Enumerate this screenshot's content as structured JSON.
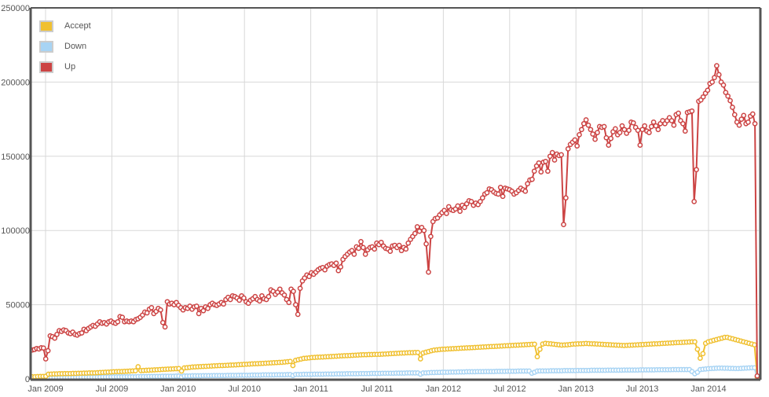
{
  "chart_data": {
    "type": "line",
    "title": "",
    "xlabel": "",
    "ylabel": "",
    "ylim": [
      0,
      250000
    ],
    "y_ticks": [
      "0",
      "50000",
      "100000",
      "150000",
      "200000",
      "250000"
    ],
    "x_ticks": [
      "Jan 2009",
      "Jul 2009",
      "Jan 2010",
      "Jul 2010",
      "Jan 2011",
      "Jul 2011",
      "Jan 2012",
      "Jul 2012",
      "Jan 2013",
      "Jul 2013",
      "Jan 2014"
    ],
    "grid": true,
    "legend_position": "top-left",
    "x_granularity": "weekly",
    "x_start": "Nov 2008",
    "x_end": "Jun 2014",
    "series": [
      {
        "name": "Accept",
        "color": "#f0c030",
        "values": [
          1500,
          1500,
          1600,
          1700,
          1700,
          1800,
          3200,
          3300,
          3400,
          3400,
          3500,
          3500,
          3600,
          3600,
          3600,
          3700,
          3700,
          3800,
          3800,
          3900,
          3900,
          4000,
          4000,
          4100,
          4200,
          4300,
          4400,
          4500,
          4600,
          4700,
          4800,
          4900,
          5000,
          5000,
          5100,
          5200,
          5300,
          5400,
          5500,
          8200,
          5600,
          5700,
          5800,
          5900,
          6000,
          6100,
          6200,
          6300,
          6400,
          6500,
          6600,
          6700,
          6800,
          6900,
          7000,
          5300,
          7400,
          7600,
          7800,
          8000,
          8100,
          8200,
          8300,
          8400,
          8500,
          8600,
          8700,
          8800,
          8900,
          9000,
          9000,
          9100,
          9200,
          9300,
          9400,
          9500,
          9600,
          9700,
          9800,
          9900,
          10000,
          10100,
          10200,
          10300,
          10400,
          10500,
          10600,
          10700,
          10800,
          10900,
          11000,
          11100,
          11200,
          11400,
          11600,
          11800,
          9000,
          12500,
          13000,
          13400,
          13800,
          14000,
          14200,
          14400,
          14500,
          14600,
          14700,
          14800,
          14900,
          15000,
          15100,
          15200,
          15300,
          15400,
          15500,
          15600,
          15700,
          15800,
          15900,
          16000,
          16100,
          16200,
          16300,
          16300,
          16400,
          16400,
          16500,
          16500,
          16600,
          16700,
          16800,
          16900,
          17000,
          17100,
          17200,
          17300,
          17400,
          17500,
          17600,
          17700,
          17700,
          17800,
          17800,
          13500,
          17500,
          18000,
          18500,
          19000,
          19400,
          19600,
          19800,
          20000,
          20100,
          20200,
          20300,
          20400,
          20500,
          20600,
          20700,
          20800,
          20900,
          21000,
          21100,
          21200,
          21300,
          21400,
          21500,
          21600,
          21700,
          21800,
          21900,
          22000,
          22100,
          22200,
          22300,
          22400,
          22500,
          22600,
          22700,
          22800,
          22900,
          23000,
          23100,
          23200,
          23300,
          23400,
          15000,
          20000,
          23500,
          24000,
          23800,
          23600,
          23400,
          23200,
          23000,
          22800,
          22900,
          23000,
          23200,
          23400,
          23500,
          23600,
          23700,
          23800,
          23900,
          23800,
          23700,
          23600,
          23500,
          23400,
          23300,
          23200,
          23100,
          23000,
          22900,
          22800,
          22700,
          22600,
          22500,
          22600,
          22700,
          22800,
          22900,
          23000,
          23100,
          23200,
          23300,
          23400,
          23500,
          23600,
          23700,
          23800,
          23900,
          24000,
          24100,
          24200,
          24300,
          24400,
          24500,
          24600,
          24700,
          24800,
          24900,
          25000,
          25000,
          20000,
          14000,
          17000,
          24000,
          25000,
          25500,
          26000,
          26500,
          27000,
          27500,
          28000,
          28000,
          27500,
          27000,
          26500,
          26000,
          25500,
          25000,
          24500,
          24000,
          23500,
          23000,
          1500
        ],
        "description": "Grows from ~1.5k (Nov 2008) to ~27k (Apr 2014), dips near each New Year, drops to ~0 at end"
      },
      {
        "name": "Down",
        "color": "#a8d4f4",
        "values": [
          500,
          500,
          500,
          500,
          500,
          500,
          700,
          800,
          800,
          800,
          900,
          900,
          900,
          900,
          1000,
          1000,
          1000,
          1000,
          1100,
          1100,
          1100,
          1100,
          1200,
          1200,
          1200,
          1200,
          1300,
          1300,
          1300,
          1300,
          1400,
          1400,
          1400,
          1400,
          1500,
          1500,
          1500,
          1500,
          1500,
          1600,
          1600,
          1600,
          1600,
          1700,
          1700,
          1700,
          1700,
          1700,
          1800,
          1800,
          1800,
          1800,
          1800,
          1900,
          1900,
          1400,
          2000,
          2000,
          2000,
          2100,
          2100,
          2100,
          2100,
          2200,
          2200,
          2200,
          2200,
          2300,
          2300,
          2300,
          2300,
          2300,
          2400,
          2400,
          2400,
          2400,
          2500,
          2500,
          2500,
          2500,
          2500,
          2600,
          2600,
          2600,
          2600,
          2700,
          2700,
          2700,
          2700,
          2700,
          2800,
          2800,
          2800,
          2800,
          2900,
          2900,
          2300,
          3000,
          3000,
          3000,
          3100,
          3100,
          3100,
          3100,
          3200,
          3200,
          3200,
          3200,
          3300,
          3300,
          3300,
          3300,
          3400,
          3400,
          3400,
          3400,
          3500,
          3500,
          3500,
          3500,
          3500,
          3600,
          3600,
          3600,
          3600,
          3700,
          3700,
          3700,
          3700,
          3800,
          3800,
          3800,
          3800,
          3800,
          3900,
          3900,
          3900,
          3900,
          4000,
          4000,
          4000,
          4000,
          4000,
          3200,
          4000,
          4100,
          4200,
          4300,
          4300,
          4400,
          4400,
          4500,
          4500,
          4500,
          4600,
          4600,
          4600,
          4700,
          4700,
          4700,
          4800,
          4800,
          4800,
          4800,
          4900,
          4900,
          4900,
          5000,
          5000,
          5000,
          5000,
          5100,
          5100,
          5100,
          5100,
          5200,
          5200,
          5200,
          5200,
          5300,
          5300,
          5300,
          5300,
          5300,
          3800,
          4500,
          5300,
          5400,
          5400,
          5400,
          5400,
          5500,
          5500,
          5500,
          5500,
          5500,
          5600,
          5600,
          5600,
          5600,
          5600,
          5700,
          5700,
          5700,
          5700,
          5700,
          5800,
          5800,
          5800,
          5800,
          5800,
          5800,
          5900,
          5900,
          5900,
          5900,
          5900,
          5900,
          6000,
          6000,
          6000,
          6000,
          6000,
          6000,
          6100,
          6100,
          6100,
          6100,
          6100,
          6100,
          6200,
          6200,
          6200,
          6200,
          6200,
          6200,
          6300,
          6300,
          6300,
          6300,
          6300,
          6300,
          6300,
          5000,
          3500,
          4500,
          6300,
          6500,
          6700,
          6900,
          7000,
          7100,
          7200,
          7300,
          7300,
          7200,
          7200,
          7100,
          7100,
          7000,
          7000,
          7100,
          7200,
          7300,
          7400,
          7500,
          7500,
          500
        ],
        "description": "Grows slowly from ~0.5k to ~7.5k, follows Accept's seasonal dips, drops to ~0 at end"
      },
      {
        "name": "Up",
        "color": "#cc4444",
        "values": [
          19500,
          19800,
          20500,
          20200,
          21000,
          20800,
          13500,
          19000,
          29000,
          28500,
          27500,
          30000,
          32500,
          32000,
          33000,
          32500,
          31000,
          30500,
          31500,
          30000,
          29500,
          30500,
          31000,
          33500,
          32500,
          34000,
          35000,
          36000,
          35500,
          37000,
          38500,
          37500,
          38000,
          37000,
          38500,
          39000,
          38000,
          37500,
          38500,
          42000,
          41500,
          38500,
          39000,
          38500,
          39000,
          38500,
          40000,
          40500,
          41500,
          43000,
          45000,
          44500,
          47000,
          48000,
          44000,
          45500,
          47500,
          46500,
          38000,
          35000,
          52000,
          50500,
          51000,
          50000,
          51500,
          49500,
          48000,
          46500,
          48000,
          47500,
          49000,
          47000,
          48500,
          49000,
          44000,
          47500,
          46000,
          48500,
          47500,
          50000,
          51000,
          50000,
          49500,
          50500,
          51500,
          50500,
          53500,
          55000,
          53500,
          56000,
          55500,
          54500,
          53000,
          56000,
          54500,
          52000,
          51000,
          53000,
          54000,
          55500,
          53500,
          52500,
          56000,
          54000,
          53500,
          55500,
          60000,
          59000,
          57000,
          58500,
          60500,
          58000,
          56500,
          53500,
          51500,
          60500,
          59000,
          50000,
          43500,
          61000,
          66000,
          68000,
          70000,
          69000,
          71500,
          70500,
          72000,
          73500,
          74500,
          75000,
          73500,
          76000,
          77000,
          77500,
          76500,
          78000,
          73000,
          75500,
          80500,
          82500,
          84000,
          85500,
          86500,
          84000,
          89000,
          88000,
          92500,
          88500,
          84000,
          87000,
          88500,
          89000,
          87500,
          91500,
          90500,
          92000,
          89500,
          88000,
          87500,
          86000,
          89500,
          90000,
          88500,
          90000,
          86500,
          88500,
          87500,
          91500,
          94000,
          96000,
          98000,
          102500,
          99500,
          102000,
          100000,
          91000,
          72000,
          96000,
          106000,
          108000,
          108500,
          110500,
          112000,
          113500,
          111500,
          116000,
          114000,
          113500,
          114500,
          116500,
          113000,
          117000,
          115500,
          118000,
          120000,
          119500,
          117000,
          118500,
          117500,
          119500,
          122000,
          124500,
          125500,
          128000,
          127500,
          126000,
          125000,
          124500,
          129000,
          123000,
          128500,
          128000,
          127500,
          126500,
          124500,
          125500,
          127000,
          128500,
          127500,
          126500,
          131500,
          134000,
          134500,
          140000,
          143500,
          145500,
          139500,
          146000,
          146500,
          140000,
          150000,
          152500,
          147500,
          151500,
          150500,
          151000,
          104000,
          122000,
          155000,
          158000,
          159500,
          161000,
          157000,
          164500,
          168000,
          172000,
          174500,
          171000,
          168000,
          165000,
          161500,
          166000,
          170000,
          169500,
          170000,
          162500,
          157500,
          162000,
          166500,
          168500,
          164500,
          166000,
          170500,
          168000,
          165500,
          167500,
          173000,
          172500,
          169500,
          167500,
          157500,
          168000,
          170500,
          167000,
          166000,
          170000,
          173000,
          170500,
          168000,
          172000,
          174000,
          172000,
          174000,
          176000,
          174000,
          171000,
          178000,
          179000,
          174000,
          172000,
          167000,
          179500,
          180000,
          180500,
          119500,
          141000,
          187000,
          188000,
          190000,
          192500,
          194500,
          199000,
          200000,
          203000,
          211000,
          205000,
          200000,
          198000,
          193000,
          190500,
          187500,
          183000,
          178000,
          173000,
          171000,
          175000,
          177500,
          172000,
          173000,
          177000,
          178500,
          172000,
          2000
        ],
        "description": "Grows from ~20k (Nov 2008) to a peak of ~211k (Mar 2014); sharp dips around each New Year (Jan 2012 ~72k, Jan 2013 ~104k, Jan 2014 ~120k); final point drops to ~2k"
      }
    ]
  },
  "legend": {
    "items": [
      {
        "label": "Accept",
        "color": "#f0c030"
      },
      {
        "label": "Down",
        "color": "#a8d4f4"
      },
      {
        "label": "Up",
        "color": "#cc4444"
      }
    ]
  },
  "axes": {
    "y_labels": [
      "0",
      "50000",
      "100000",
      "150000",
      "200000",
      "250000"
    ],
    "x_labels": [
      "Jan 2009",
      "Jul 2009",
      "Jan 2010",
      "Jul 2010",
      "Jan 2011",
      "Jul 2011",
      "Jan 2012",
      "Jul 2012",
      "Jan 2013",
      "Jul 2013",
      "Jan 2014"
    ]
  }
}
